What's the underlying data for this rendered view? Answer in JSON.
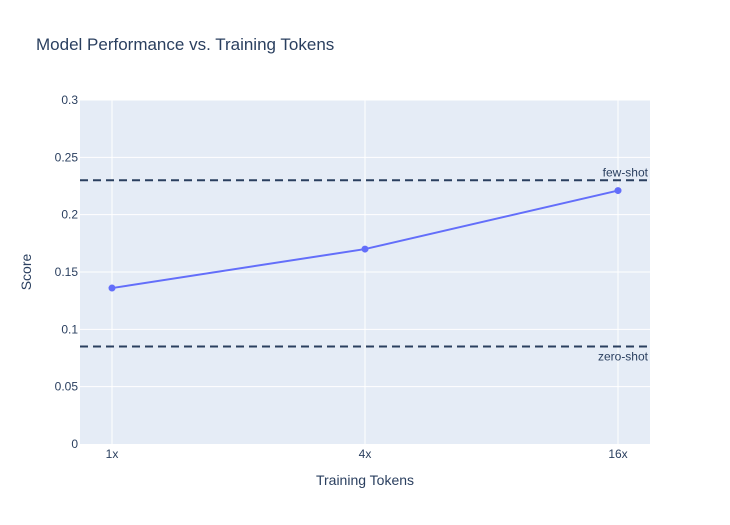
{
  "chart_data": {
    "type": "line",
    "title": "Model Performance vs. Training Tokens",
    "xlabel": "Training Tokens",
    "ylabel": "Score",
    "categories": [
      "1x",
      "4x",
      "16x"
    ],
    "series": [
      {
        "values": [
          0.136,
          0.17,
          0.221
        ],
        "color": "#636efa"
      }
    ],
    "ylim": [
      0,
      0.3
    ],
    "yticks": [
      0,
      0.05,
      0.1,
      0.15,
      0.2,
      0.25,
      0.3
    ],
    "ytick_labels": [
      "0",
      "0.05",
      "0.1",
      "0.15",
      "0.2",
      "0.25",
      "0.3"
    ],
    "reference_lines": [
      {
        "label": "few-shot",
        "value": 0.23,
        "label_position": "above"
      },
      {
        "label": "zero-shot",
        "value": 0.085,
        "label_position": "below"
      }
    ],
    "reference_line_color": "#2a3f5f",
    "plot_background": "#e5ecf6",
    "grid": true,
    "legend": false
  }
}
